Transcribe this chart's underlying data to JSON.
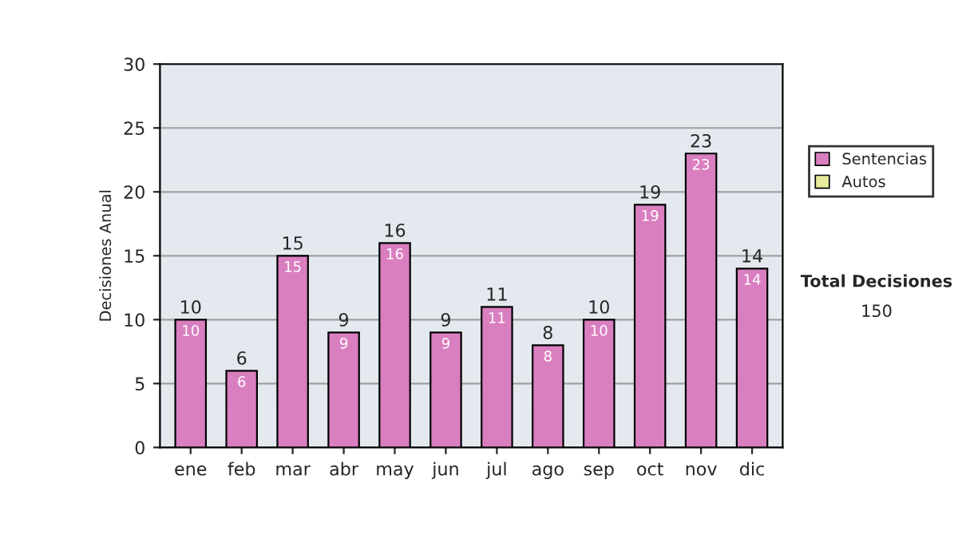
{
  "chart_data": {
    "type": "bar",
    "stacked": true,
    "ylabel": "Decisiones Anual",
    "categories": [
      "ene",
      "feb",
      "mar",
      "abr",
      "may",
      "jun",
      "jul",
      "ago",
      "sep",
      "oct",
      "nov",
      "dic"
    ],
    "series": [
      {
        "name": "Sentencias",
        "color": "#d97fc0",
        "values": [
          10,
          6,
          15,
          9,
          16,
          9,
          11,
          8,
          10,
          19,
          23,
          14
        ],
        "value_labels": [
          "10",
          "6",
          "15",
          "9",
          "16",
          "9",
          "11",
          "8",
          "10",
          "19",
          "23",
          "14"
        ]
      },
      {
        "name": "Autos",
        "color": "#e6eb9c",
        "values": [
          0,
          0,
          0,
          0,
          0,
          0,
          0,
          0,
          0,
          0,
          0,
          0
        ]
      }
    ],
    "totals": [
      "10",
      "6",
      "15",
      "9",
      "16",
      "9",
      "11",
      "8",
      "10",
      "19",
      "23",
      "14"
    ],
    "ylim": [
      0,
      30
    ],
    "yticks": [
      0,
      5,
      10,
      15,
      20,
      25,
      30
    ],
    "grid": "y",
    "legend": "right",
    "annotations": [
      "Total Decisiones",
      "150"
    ]
  }
}
